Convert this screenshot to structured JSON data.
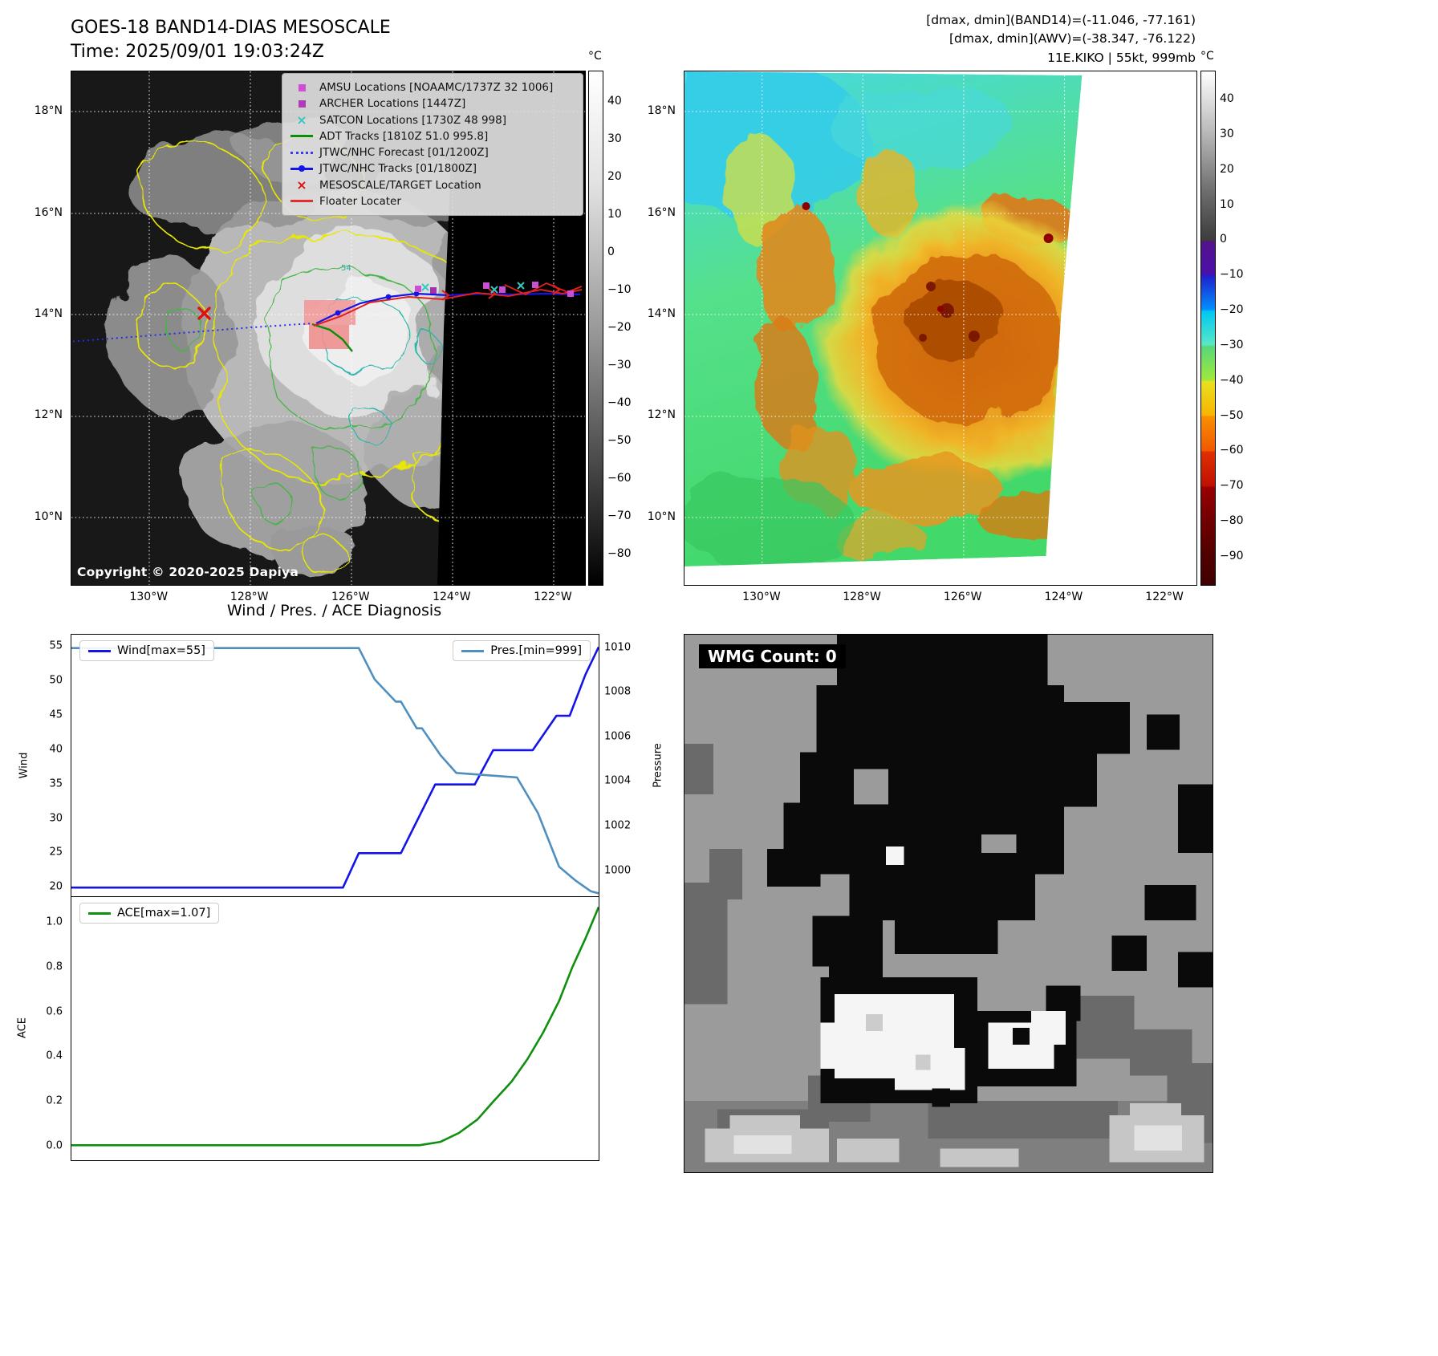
{
  "header": {
    "title": "GOES-18 BAND14-DIAS MESOSCALE",
    "time_line": "Time: 2025/09/01 19:03:24Z",
    "info_line1": "[dmax, dmin](BAND14)=(-11.046, -77.161)",
    "info_line2": "[dmax, dmin](AWV)=(-38.347, -76.122)",
    "info_line3": "11E.KIKO | 55kt, 999mb"
  },
  "map_left": {
    "lat_ticks": [
      "18°N",
      "16°N",
      "14°N",
      "12°N",
      "10°N"
    ],
    "lon_ticks": [
      "130°W",
      "128°W",
      "126°W",
      "124°W",
      "122°W"
    ],
    "copyright": "Copyright © 2020-2025 Dapiya",
    "contour_label": "54",
    "legend_items": [
      {
        "marker": "square",
        "color": "#cf4fd4",
        "label": "AMSU Locations [NOAAMC/1737Z 32 1006]"
      },
      {
        "marker": "square",
        "color": "#b13ab8",
        "label": "ARCHER Locations [1447Z]"
      },
      {
        "marker": "x",
        "color": "#35c8c0",
        "label": "SATCON Locations [1730Z 48 998]"
      },
      {
        "marker": "line",
        "color": "#0a8f0a",
        "label": "ADT Tracks [1810Z 51.0 995.8]"
      },
      {
        "marker": "dotted",
        "color": "#3b3bf0",
        "label": "JTWC/NHC Forecast [01/1200Z]"
      },
      {
        "marker": "line-dot",
        "color": "#1414e6",
        "label": "JTWC/NHC Tracks [01/1800Z]"
      },
      {
        "marker": "x",
        "color": "#e01010",
        "label": "MESOSCALE/TARGET Location"
      },
      {
        "marker": "line",
        "color": "#e23030",
        "label": "Floater Locater"
      }
    ],
    "colorbar": {
      "unit": "°C",
      "vmax": 48,
      "vmin": -88,
      "ticks": [
        {
          "v": 40,
          "t": "40"
        },
        {
          "v": 30,
          "t": "30"
        },
        {
          "v": 20,
          "t": "20"
        },
        {
          "v": 10,
          "t": "10"
        },
        {
          "v": 0,
          "t": "0"
        },
        {
          "v": -10,
          "t": "−10"
        },
        {
          "v": -20,
          "t": "−20"
        },
        {
          "v": -30,
          "t": "−30"
        },
        {
          "v": -40,
          "t": "−40"
        },
        {
          "v": -50,
          "t": "−50"
        },
        {
          "v": -60,
          "t": "−60"
        },
        {
          "v": -70,
          "t": "−70"
        },
        {
          "v": -80,
          "t": "−80"
        }
      ]
    }
  },
  "map_right": {
    "lat_ticks": [
      "18°N",
      "16°N",
      "14°N",
      "12°N",
      "10°N"
    ],
    "lon_ticks": [
      "130°W",
      "128°W",
      "126°W",
      "124°W",
      "122°W"
    ],
    "colorbar": {
      "unit": "°C",
      "vmax": 48,
      "vmin": -98,
      "ticks": [
        {
          "v": 40,
          "t": "40"
        },
        {
          "v": 30,
          "t": "30"
        },
        {
          "v": 20,
          "t": "20"
        },
        {
          "v": 10,
          "t": "10"
        },
        {
          "v": 0,
          "t": "0"
        },
        {
          "v": -10,
          "t": "−10"
        },
        {
          "v": -20,
          "t": "−20"
        },
        {
          "v": -30,
          "t": "−30"
        },
        {
          "v": -40,
          "t": "−40"
        },
        {
          "v": -50,
          "t": "−50"
        },
        {
          "v": -60,
          "t": "−60"
        },
        {
          "v": -70,
          "t": "−70"
        },
        {
          "v": -80,
          "t": "−80"
        },
        {
          "v": -90,
          "t": "−90"
        }
      ]
    }
  },
  "diagnosis": {
    "title": "Wind / Pres. / ACE Diagnosis"
  },
  "wmg": {
    "count_label": "WMG Count: 0"
  },
  "chart_data": [
    {
      "type": "line",
      "title": "Wind / Pres. / ACE Diagnosis",
      "xlim": [
        0,
        1
      ],
      "left_axis": {
        "label": "Wind",
        "ticks": [
          "20",
          "25",
          "30",
          "35",
          "40",
          "45",
          "50",
          "55"
        ],
        "lim": [
          18.5,
          56.8
        ]
      },
      "right_axis": {
        "label": "Pressure",
        "ticks": [
          "1000",
          "1002",
          "1004",
          "1006",
          "1008",
          "1010"
        ],
        "lim": [
          998.8,
          1010.6
        ]
      },
      "series": [
        {
          "name": "Wind[max=55]",
          "color": "#1414e6",
          "axis": "left",
          "x": [
            0,
            0.515,
            0.545,
            0.625,
            0.69,
            0.765,
            0.8,
            0.875,
            0.92,
            0.945,
            0.975,
            1.0
          ],
          "y": [
            20,
            20,
            25,
            25,
            35,
            35,
            40,
            40,
            45,
            45,
            51,
            55
          ]
        },
        {
          "name": "Pres.[min=999]",
          "color": "#4f8fbf",
          "axis": "right",
          "x": [
            0,
            0.545,
            0.575,
            0.615,
            0.625,
            0.655,
            0.665,
            0.7,
            0.73,
            0.845,
            0.885,
            0.925,
            0.955,
            0.985,
            1.0
          ],
          "y": [
            1010,
            1010,
            1008.6,
            1007.6,
            1007.6,
            1006.4,
            1006.4,
            1005.2,
            1004.4,
            1004.2,
            1002.6,
            1000.2,
            999.6,
            999.1,
            999.0
          ]
        }
      ]
    },
    {
      "type": "line",
      "xlim": [
        0,
        1
      ],
      "left_axis": {
        "label": "ACE",
        "ticks": [
          "0.0",
          "0.2",
          "0.4",
          "0.6",
          "0.8",
          "1.0"
        ],
        "lim": [
          -0.062,
          1.115
        ]
      },
      "series": [
        {
          "name": "ACE[max=1.07]",
          "color": "#0f8f0f",
          "axis": "left",
          "x": [
            0,
            0.66,
            0.7,
            0.735,
            0.77,
            0.8,
            0.835,
            0.865,
            0.895,
            0.925,
            0.95,
            0.975,
            1.0
          ],
          "y": [
            0.005,
            0.005,
            0.02,
            0.06,
            0.12,
            0.2,
            0.29,
            0.39,
            0.51,
            0.65,
            0.8,
            0.93,
            1.07
          ]
        }
      ]
    }
  ]
}
